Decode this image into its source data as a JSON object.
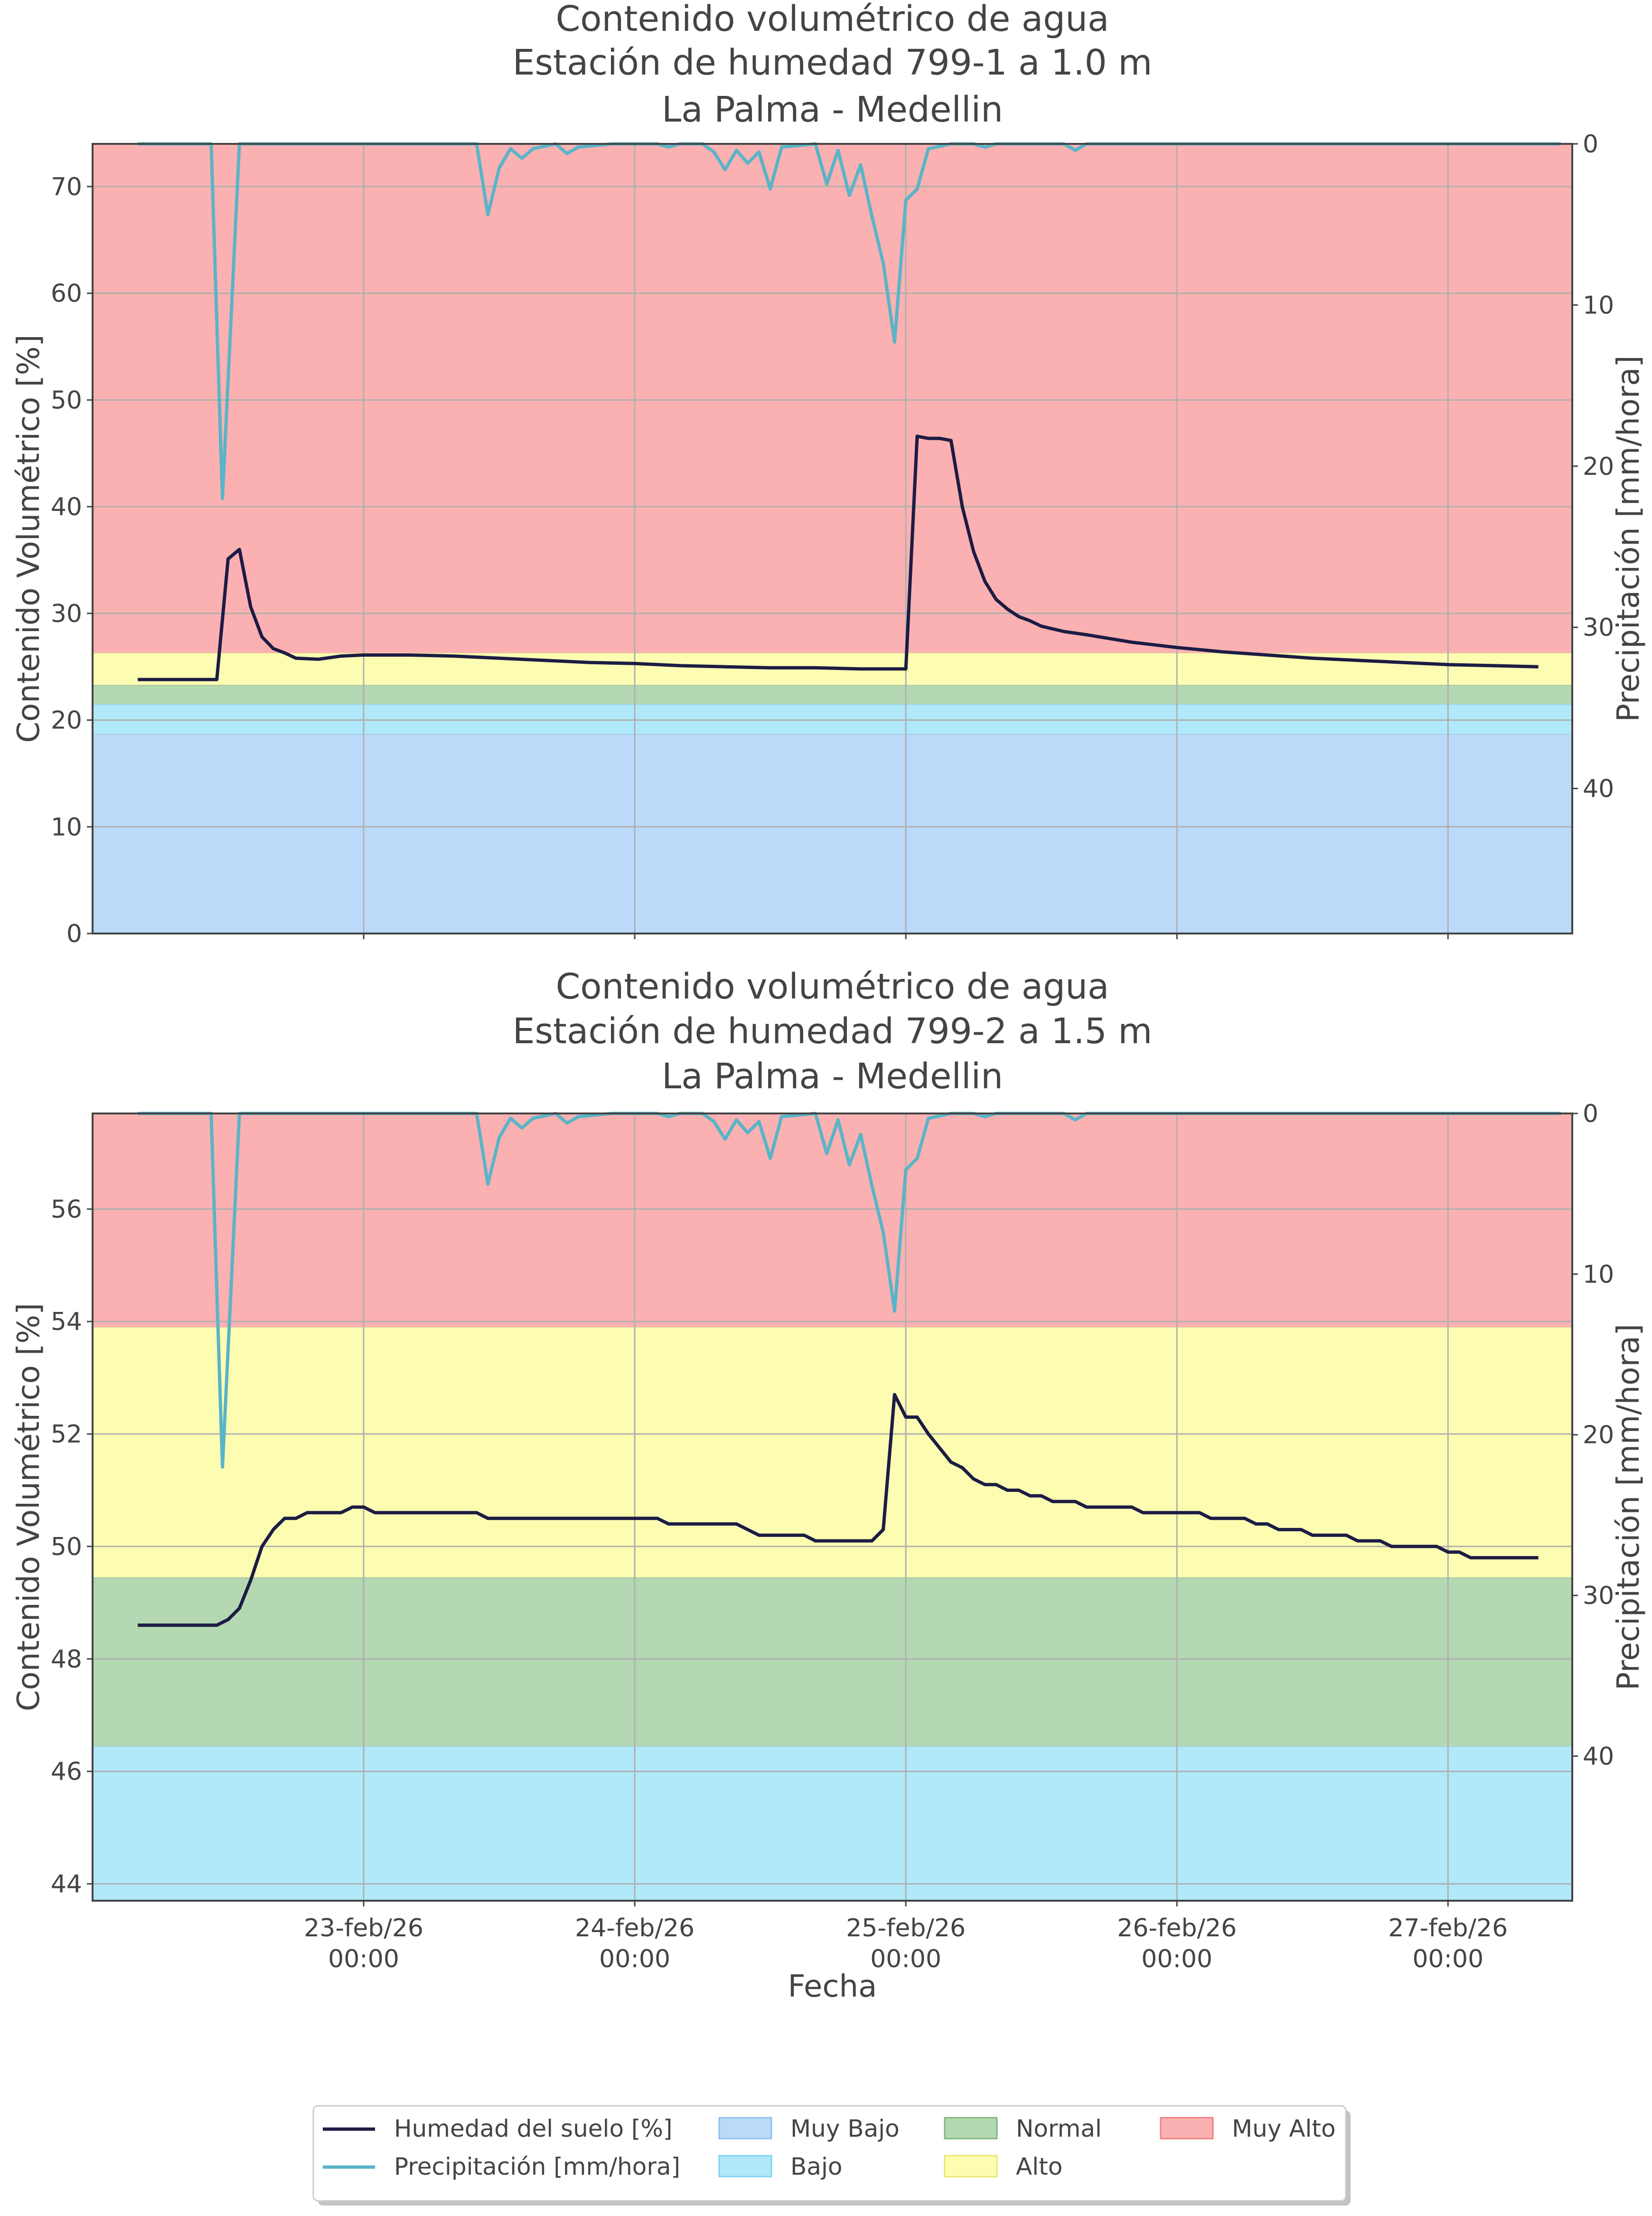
{
  "chart_data": [
    {
      "type": "line",
      "title_lines": [
        "Contenido volumétrico de agua",
        "Estación de humedad 799-1 a 1.0 m",
        "La Palma - Medellin"
      ],
      "ylabel": "Contenido Volumétrico [%]",
      "y2label": "Precipitación [mm/hora]",
      "xlabel": "",
      "ylim": [
        0,
        74
      ],
      "y2lim_inverted": [
        0,
        49
      ],
      "yticks": [
        0,
        10,
        20,
        30,
        40,
        50,
        60,
        70
      ],
      "y2ticks": [
        0,
        10,
        20,
        30,
        40
      ],
      "xlim_hours": [
        0,
        131
      ],
      "xticks": [
        {
          "hour": 24,
          "date": "23-feb/26",
          "time": "00:00"
        },
        {
          "hour": 48,
          "date": "24-feb/26",
          "time": "00:00"
        },
        {
          "hour": 72,
          "date": "25-feb/26",
          "time": "00:00"
        },
        {
          "hour": 96,
          "date": "26-feb/26",
          "time": "00:00"
        },
        {
          "hour": 120,
          "date": "27-feb/26",
          "time": "00:00"
        }
      ],
      "x_axis_note": "x values are hours from 22-feb/26 02:00 (fractional)",
      "bands": [
        {
          "name": "Muy Bajo",
          "from": 0,
          "to": 18.7,
          "color": "#bbdaf9"
        },
        {
          "name": "Bajo",
          "from": 18.7,
          "to": 21.5,
          "color": "#b1e8fa"
        },
        {
          "name": "Normal",
          "from": 21.5,
          "to": 23.3,
          "color": "#b4d8b1"
        },
        {
          "name": "Alto",
          "from": 23.3,
          "to": 26.3,
          "color": "#fdfdb2"
        },
        {
          "name": "Muy Alto",
          "from": 26.3,
          "to": 74,
          "color": "#fbb1b1"
        }
      ],
      "series": [
        {
          "name": "Humedad del suelo [%]",
          "color": "#1c1c44",
          "axis": "left",
          "points": [
            [
              4,
              23.8
            ],
            [
              11,
              23.8
            ],
            [
              12,
              35.1
            ],
            [
              13,
              36
            ],
            [
              14,
              30.6
            ],
            [
              15,
              27.8
            ],
            [
              16,
              26.7
            ],
            [
              17,
              26.3
            ],
            [
              18,
              25.8
            ],
            [
              20,
              25.7
            ],
            [
              22,
              26
            ],
            [
              24,
              26.1
            ],
            [
              28,
              26.1
            ],
            [
              32,
              26
            ],
            [
              36,
              25.8
            ],
            [
              40,
              25.6
            ],
            [
              44,
              25.4
            ],
            [
              48,
              25.3
            ],
            [
              52,
              25.1
            ],
            [
              56,
              25
            ],
            [
              60,
              24.9
            ],
            [
              64,
              24.9
            ],
            [
              68,
              24.8
            ],
            [
              72,
              24.8
            ],
            [
              73,
              46.6
            ],
            [
              74,
              46.4
            ],
            [
              75,
              46.4
            ],
            [
              76,
              46.2
            ],
            [
              77,
              40
            ],
            [
              78,
              35.8
            ],
            [
              79,
              33
            ],
            [
              80,
              31.3
            ],
            [
              81,
              30.4
            ],
            [
              82,
              29.7
            ],
            [
              83,
              29.3
            ],
            [
              84,
              28.8
            ],
            [
              86,
              28.3
            ],
            [
              88,
              28
            ],
            [
              92,
              27.3
            ],
            [
              96,
              26.8
            ],
            [
              100,
              26.4
            ],
            [
              104,
              26.1
            ],
            [
              108,
              25.8
            ],
            [
              112,
              25.6
            ],
            [
              116,
              25.4
            ],
            [
              120,
              25.2
            ],
            [
              124,
              25.1
            ],
            [
              128,
              25
            ]
          ]
        },
        {
          "name": "Precipitación [mm/hora]",
          "color": "#5ab4c8",
          "axis": "right",
          "points": [
            [
              4,
              0
            ],
            [
              10.5,
              0
            ],
            [
              11.5,
              22
            ],
            [
              13,
              0
            ],
            [
              14,
              0
            ],
            [
              34,
              0
            ],
            [
              35,
              4.4
            ],
            [
              36,
              1.5
            ],
            [
              37,
              0.3
            ],
            [
              38,
              0.9
            ],
            [
              39,
              0.3
            ],
            [
              41,
              0
            ],
            [
              42,
              0.6
            ],
            [
              43,
              0.2
            ],
            [
              46,
              0
            ],
            [
              50,
              0
            ],
            [
              51,
              0.2
            ],
            [
              52,
              0
            ],
            [
              54,
              0
            ],
            [
              55,
              0.5
            ],
            [
              56,
              1.6
            ],
            [
              57,
              0.4
            ],
            [
              58,
              1.2
            ],
            [
              59,
              0.5
            ],
            [
              60,
              2.8
            ],
            [
              61,
              0.2
            ],
            [
              64,
              0
            ],
            [
              65,
              2.5
            ],
            [
              66,
              0.4
            ],
            [
              67,
              3.2
            ],
            [
              68,
              1.3
            ],
            [
              69,
              4.5
            ],
            [
              70,
              7.4
            ],
            [
              71,
              12.3
            ],
            [
              72,
              3.5
            ],
            [
              73,
              2.8
            ],
            [
              74,
              0.3
            ],
            [
              76,
              0
            ],
            [
              78,
              0
            ],
            [
              79,
              0.2
            ],
            [
              80,
              0
            ],
            [
              86,
              0
            ],
            [
              87,
              0.4
            ],
            [
              88,
              0
            ],
            [
              130,
              0
            ]
          ]
        }
      ]
    },
    {
      "type": "line",
      "title_lines": [
        "Contenido volumétrico de agua",
        "Estación de humedad 799-2 a 1.5 m",
        "La Palma - Medellin"
      ],
      "ylabel": "Contenido Volumétrico [%]",
      "y2label": "Precipitación [mm/hora]",
      "xlabel": "Fecha",
      "ylim": [
        43.7,
        57.7
      ],
      "y2lim_inverted": [
        0,
        49
      ],
      "yticks": [
        44,
        46,
        48,
        50,
        52,
        54,
        56
      ],
      "y2ticks": [
        0,
        10,
        20,
        30,
        40
      ],
      "xlim_hours": [
        0,
        131
      ],
      "xticks": [
        {
          "hour": 24,
          "date": "23-feb/26",
          "time": "00:00"
        },
        {
          "hour": 48,
          "date": "24-feb/26",
          "time": "00:00"
        },
        {
          "hour": 72,
          "date": "25-feb/26",
          "time": "00:00"
        },
        {
          "hour": 96,
          "date": "26-feb/26",
          "time": "00:00"
        },
        {
          "hour": 120,
          "date": "27-feb/26",
          "time": "00:00"
        }
      ],
      "x_axis_note": "x values are hours from 22-feb/26 02:00 (fractional)",
      "bands": [
        {
          "name": "Bajo",
          "from": 43.7,
          "to": 46.45,
          "color": "#b1e8fa"
        },
        {
          "name": "Normal",
          "from": 46.45,
          "to": 49.45,
          "color": "#b4d8b1"
        },
        {
          "name": "Alto",
          "from": 49.45,
          "to": 53.9,
          "color": "#fdfdb2"
        },
        {
          "name": "Muy Alto",
          "from": 53.9,
          "to": 57.7,
          "color": "#fbb1b1"
        }
      ],
      "series": [
        {
          "name": "Humedad del suelo [%]",
          "color": "#1c1c44",
          "axis": "left",
          "points": [
            [
              4,
              48.6
            ],
            [
              11,
              48.6
            ],
            [
              12,
              48.7
            ],
            [
              13,
              48.9
            ],
            [
              14,
              49.4
            ],
            [
              15,
              50
            ],
            [
              16,
              50.3
            ],
            [
              17,
              50.5
            ],
            [
              18,
              50.5
            ],
            [
              19,
              50.6
            ],
            [
              22,
              50.6
            ],
            [
              23,
              50.7
            ],
            [
              24,
              50.7
            ],
            [
              25,
              50.6
            ],
            [
              34,
              50.6
            ],
            [
              35,
              50.5
            ],
            [
              50,
              50.5
            ],
            [
              51,
              50.4
            ],
            [
              57,
              50.4
            ],
            [
              59,
              50.2
            ],
            [
              63,
              50.2
            ],
            [
              64,
              50.1
            ],
            [
              69,
              50.1
            ],
            [
              70,
              50.3
            ],
            [
              71,
              52.7
            ],
            [
              72,
              52.3
            ],
            [
              73,
              52.3
            ],
            [
              74,
              52
            ],
            [
              76,
              51.5
            ],
            [
              77,
              51.4
            ],
            [
              78,
              51.2
            ],
            [
              79,
              51.1
            ],
            [
              80,
              51.1
            ],
            [
              81,
              51
            ],
            [
              82,
              51
            ],
            [
              83,
              50.9
            ],
            [
              84,
              50.9
            ],
            [
              85,
              50.8
            ],
            [
              87,
              50.8
            ],
            [
              88,
              50.7
            ],
            [
              92,
              50.7
            ],
            [
              93,
              50.6
            ],
            [
              98,
              50.6
            ],
            [
              99,
              50.5
            ],
            [
              102,
              50.5
            ],
            [
              103,
              50.4
            ],
            [
              104,
              50.4
            ],
            [
              105,
              50.3
            ],
            [
              107,
              50.3
            ],
            [
              108,
              50.2
            ],
            [
              111,
              50.2
            ],
            [
              112,
              50.1
            ],
            [
              114,
              50.1
            ],
            [
              115,
              50
            ],
            [
              119,
              50
            ],
            [
              120,
              49.9
            ],
            [
              121,
              49.9
            ],
            [
              122,
              49.8
            ],
            [
              128,
              49.8
            ]
          ]
        },
        {
          "name": "Precipitación [mm/hora]",
          "color": "#5ab4c8",
          "axis": "right",
          "points": [
            [
              4,
              0
            ],
            [
              10.5,
              0
            ],
            [
              11.5,
              22
            ],
            [
              13,
              0
            ],
            [
              14,
              0
            ],
            [
              34,
              0
            ],
            [
              35,
              4.4
            ],
            [
              36,
              1.5
            ],
            [
              37,
              0.3
            ],
            [
              38,
              0.9
            ],
            [
              39,
              0.3
            ],
            [
              41,
              0
            ],
            [
              42,
              0.6
            ],
            [
              43,
              0.2
            ],
            [
              46,
              0
            ],
            [
              50,
              0
            ],
            [
              51,
              0.2
            ],
            [
              52,
              0
            ],
            [
              54,
              0
            ],
            [
              55,
              0.5
            ],
            [
              56,
              1.6
            ],
            [
              57,
              0.4
            ],
            [
              58,
              1.2
            ],
            [
              59,
              0.5
            ],
            [
              60,
              2.8
            ],
            [
              61,
              0.2
            ],
            [
              64,
              0
            ],
            [
              65,
              2.5
            ],
            [
              66,
              0.4
            ],
            [
              67,
              3.2
            ],
            [
              68,
              1.3
            ],
            [
              69,
              4.5
            ],
            [
              70,
              7.4
            ],
            [
              71,
              12.3
            ],
            [
              72,
              3.5
            ],
            [
              73,
              2.8
            ],
            [
              74,
              0.3
            ],
            [
              76,
              0
            ],
            [
              78,
              0
            ],
            [
              79,
              0.2
            ],
            [
              80,
              0
            ],
            [
              86,
              0
            ],
            [
              87,
              0.4
            ],
            [
              88,
              0
            ],
            [
              130,
              0
            ]
          ]
        }
      ]
    }
  ],
  "legend": {
    "placement": "bottom-center",
    "items": [
      {
        "label": "Humedad del suelo [%]",
        "kind": "line",
        "color": "#1c1c44"
      },
      {
        "label": "Precipitación [mm/hora]",
        "kind": "line",
        "color": "#5ab4c8"
      },
      {
        "label": "Muy Bajo",
        "kind": "patch",
        "color": "#bbdaf9",
        "edge": "#8fc0f0"
      },
      {
        "label": "Bajo",
        "kind": "patch",
        "color": "#b1e8fa",
        "edge": "#7fd3ee"
      },
      {
        "label": "Normal",
        "kind": "patch",
        "color": "#b4d8b1",
        "edge": "#7fb87a"
      },
      {
        "label": "Alto",
        "kind": "patch",
        "color": "#fdfdb2",
        "edge": "#e8e870"
      },
      {
        "label": "Muy Alto",
        "kind": "patch",
        "color": "#fbb1b1",
        "edge": "#f07f7f"
      }
    ]
  }
}
